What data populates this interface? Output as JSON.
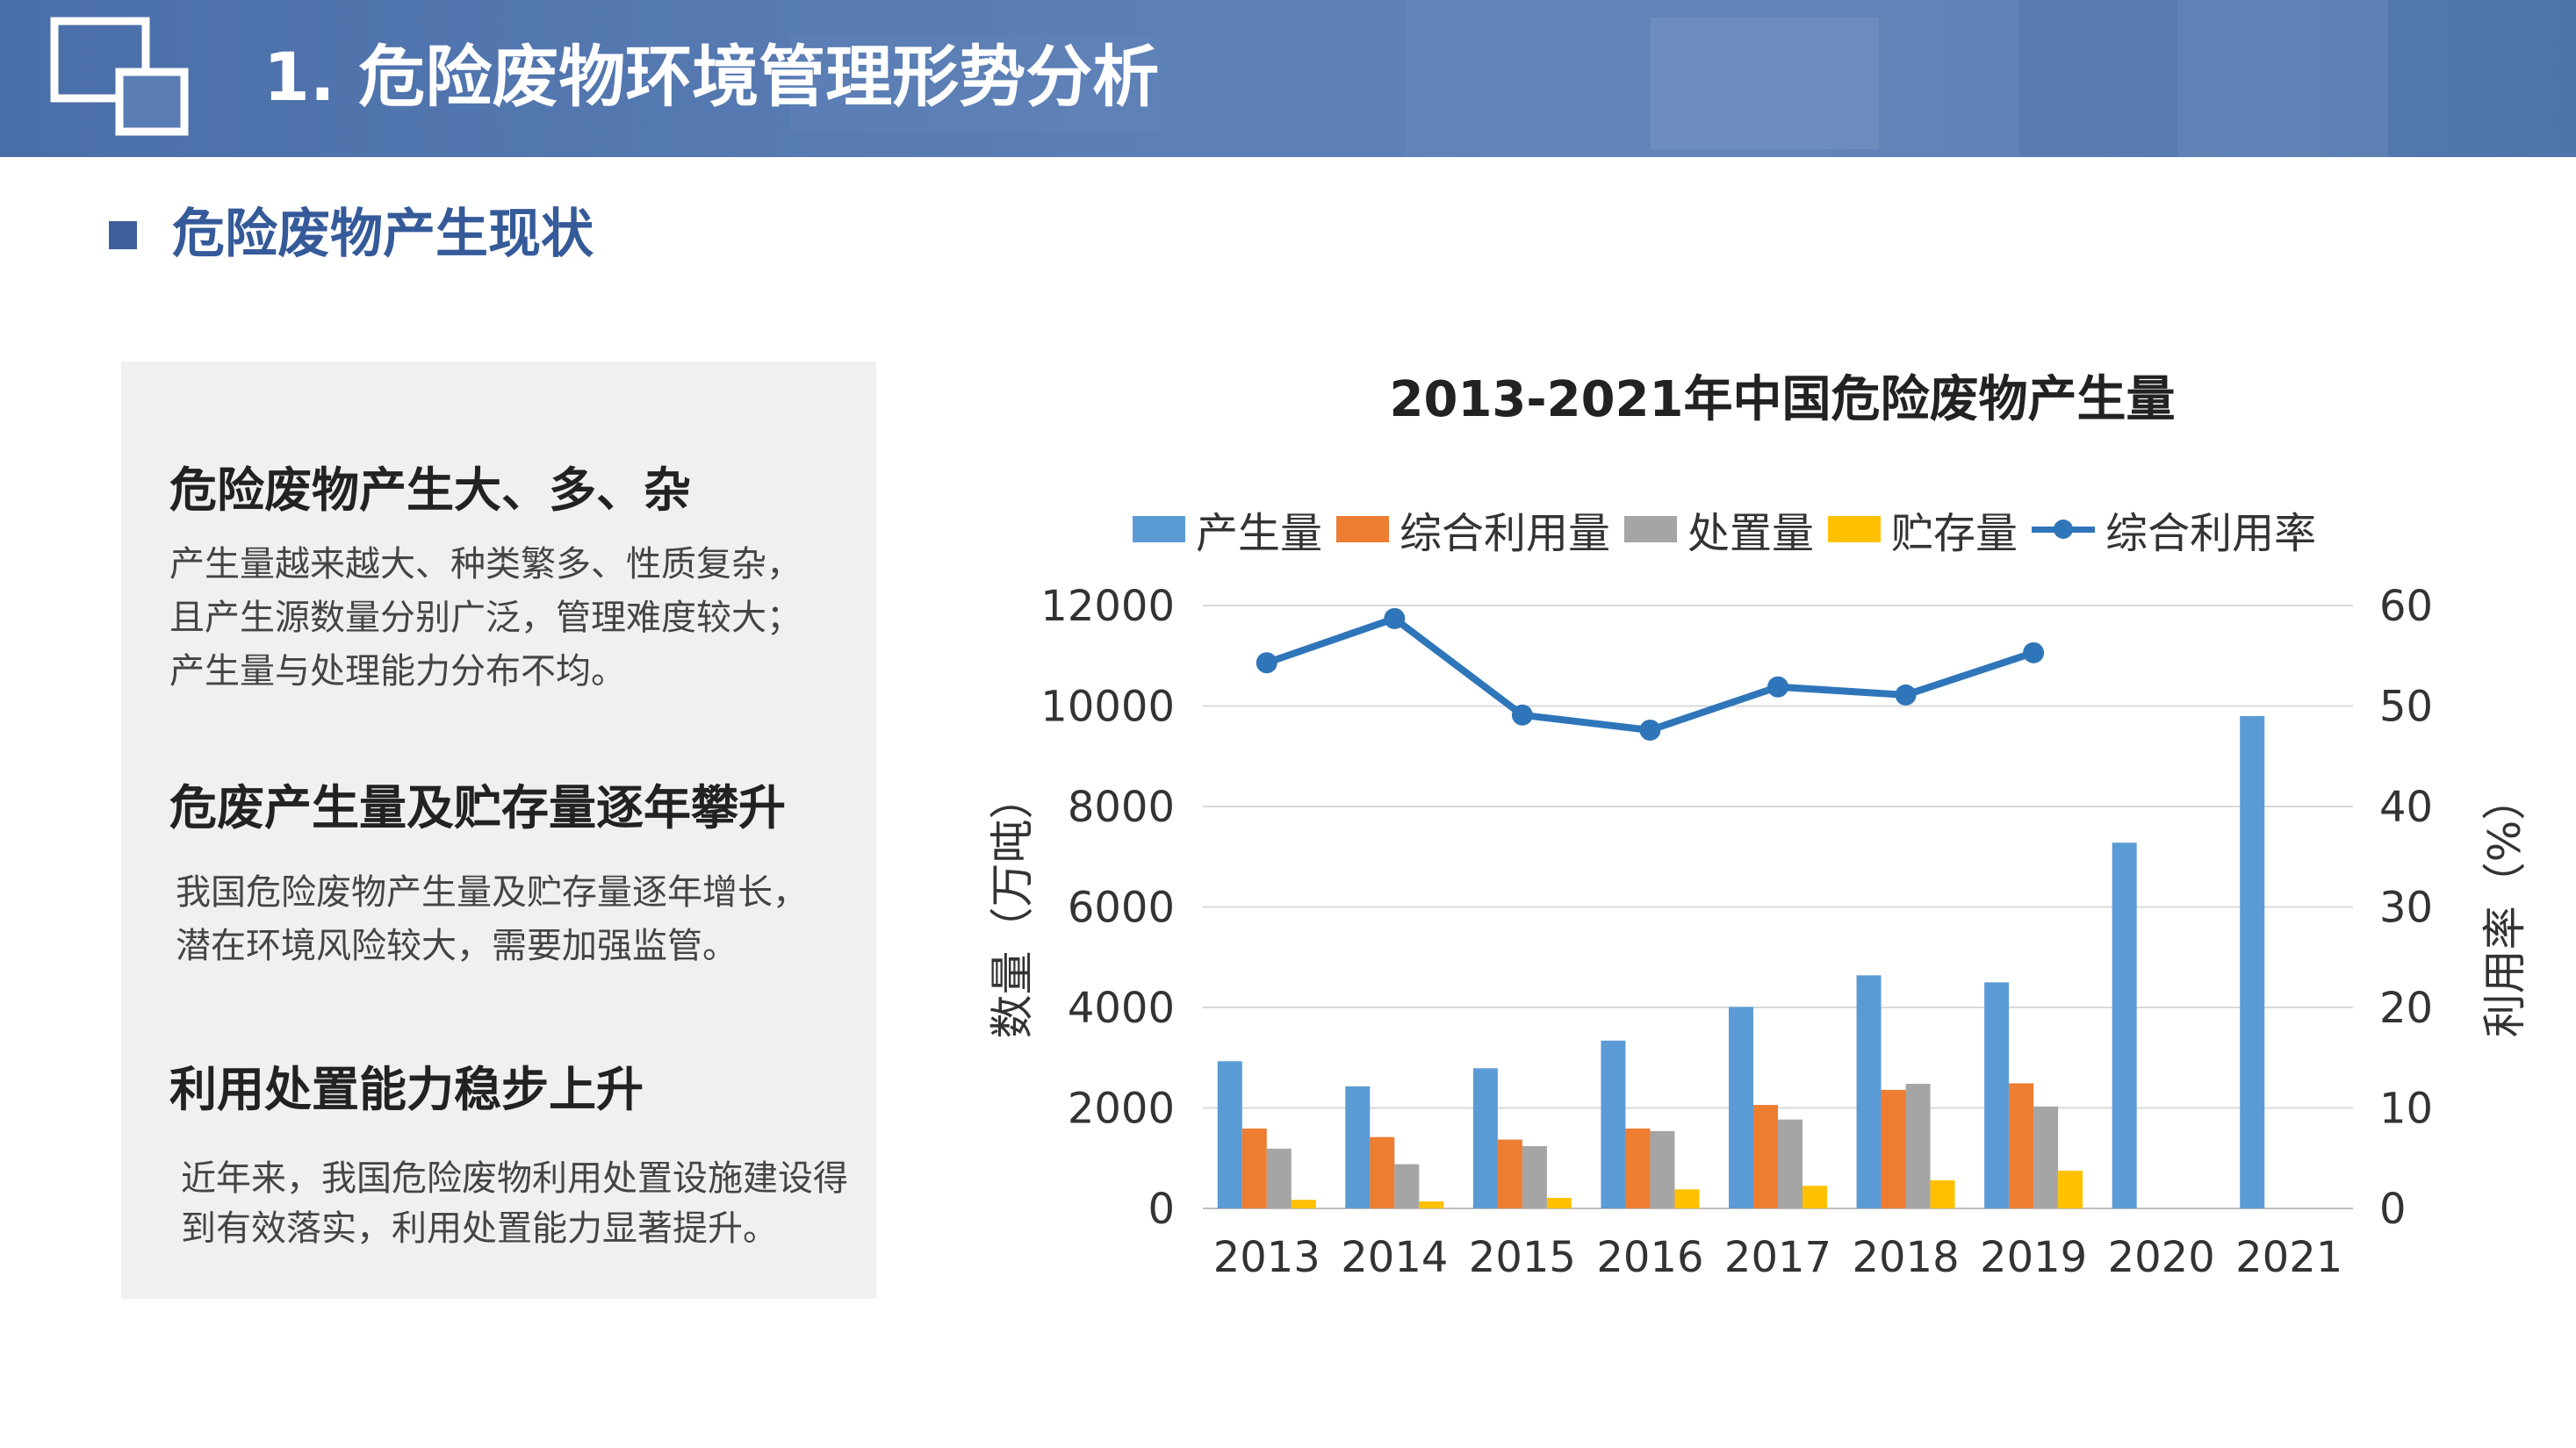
{
  "header": {
    "title": "1. 危险废物环境管理形势分析",
    "bg_color": "#5a7db5"
  },
  "section": {
    "title": "危险废物产生现状"
  },
  "panel": {
    "points": [
      {
        "title": "危险废物产生大、多、杂",
        "lines": [
          "产生量越来越大、种类繁多、性质复杂，",
          "且产生源数量分别广泛，管理难度较大；",
          "产生量与处理能力分布不均。"
        ]
      },
      {
        "title": "危废产生量及贮存量逐年攀升",
        "lines": [
          "我国危险废物产生量及贮存量逐年增长，",
          "潜在环境风险较大，需要加强监管。"
        ]
      },
      {
        "title": "利用处置能力稳步上升",
        "lines": [
          "近年来，我国危险废物利用处置设施建设得",
          "到有效落实，利用处置能力显著提升。"
        ]
      }
    ]
  },
  "chart_data": {
    "type": "bar",
    "title": "2013-2021年中国危险废物产生量",
    "categories": [
      "2013",
      "2014",
      "2015",
      "2016",
      "2017",
      "2018",
      "2019",
      "2020",
      "2021"
    ],
    "series": [
      {
        "name": "产生量",
        "kind": "bar",
        "axis": "left",
        "color": "#5b9bd5",
        "values": [
          2930,
          2430,
          2790,
          3340,
          4010,
          4640,
          4500,
          7280,
          9800
        ]
      },
      {
        "name": "综合利用量",
        "kind": "bar",
        "axis": "left",
        "color": "#ed7d31",
        "values": [
          1590,
          1420,
          1370,
          1590,
          2060,
          2360,
          2490,
          null,
          null
        ]
      },
      {
        "name": "处置量",
        "kind": "bar",
        "axis": "left",
        "color": "#a5a5a5",
        "values": [
          1190,
          880,
          1240,
          1540,
          1770,
          2480,
          2030,
          null,
          null
        ]
      },
      {
        "name": "贮存量",
        "kind": "bar",
        "axis": "left",
        "color": "#ffc000",
        "values": [
          170,
          140,
          210,
          380,
          450,
          560,
          750,
          null,
          null
        ]
      },
      {
        "name": "综合利用率",
        "kind": "line",
        "axis": "right",
        "color": "#2f75b9",
        "values": [
          54.3,
          58.7,
          49.1,
          47.6,
          51.9,
          51.1,
          55.3,
          null,
          null
        ]
      }
    ],
    "ylabel": "数量（万吨）",
    "y2label": "利用率（%）",
    "ylim": [
      0,
      12000
    ],
    "y2lim": [
      0,
      60
    ],
    "yticks": [
      "0",
      "2000",
      "4000",
      "6000",
      "8000",
      "10000",
      "12000"
    ],
    "y2ticks": [
      "0",
      "10",
      "20",
      "30",
      "40",
      "50",
      "60"
    ],
    "grid": true,
    "legend_position": "top"
  }
}
